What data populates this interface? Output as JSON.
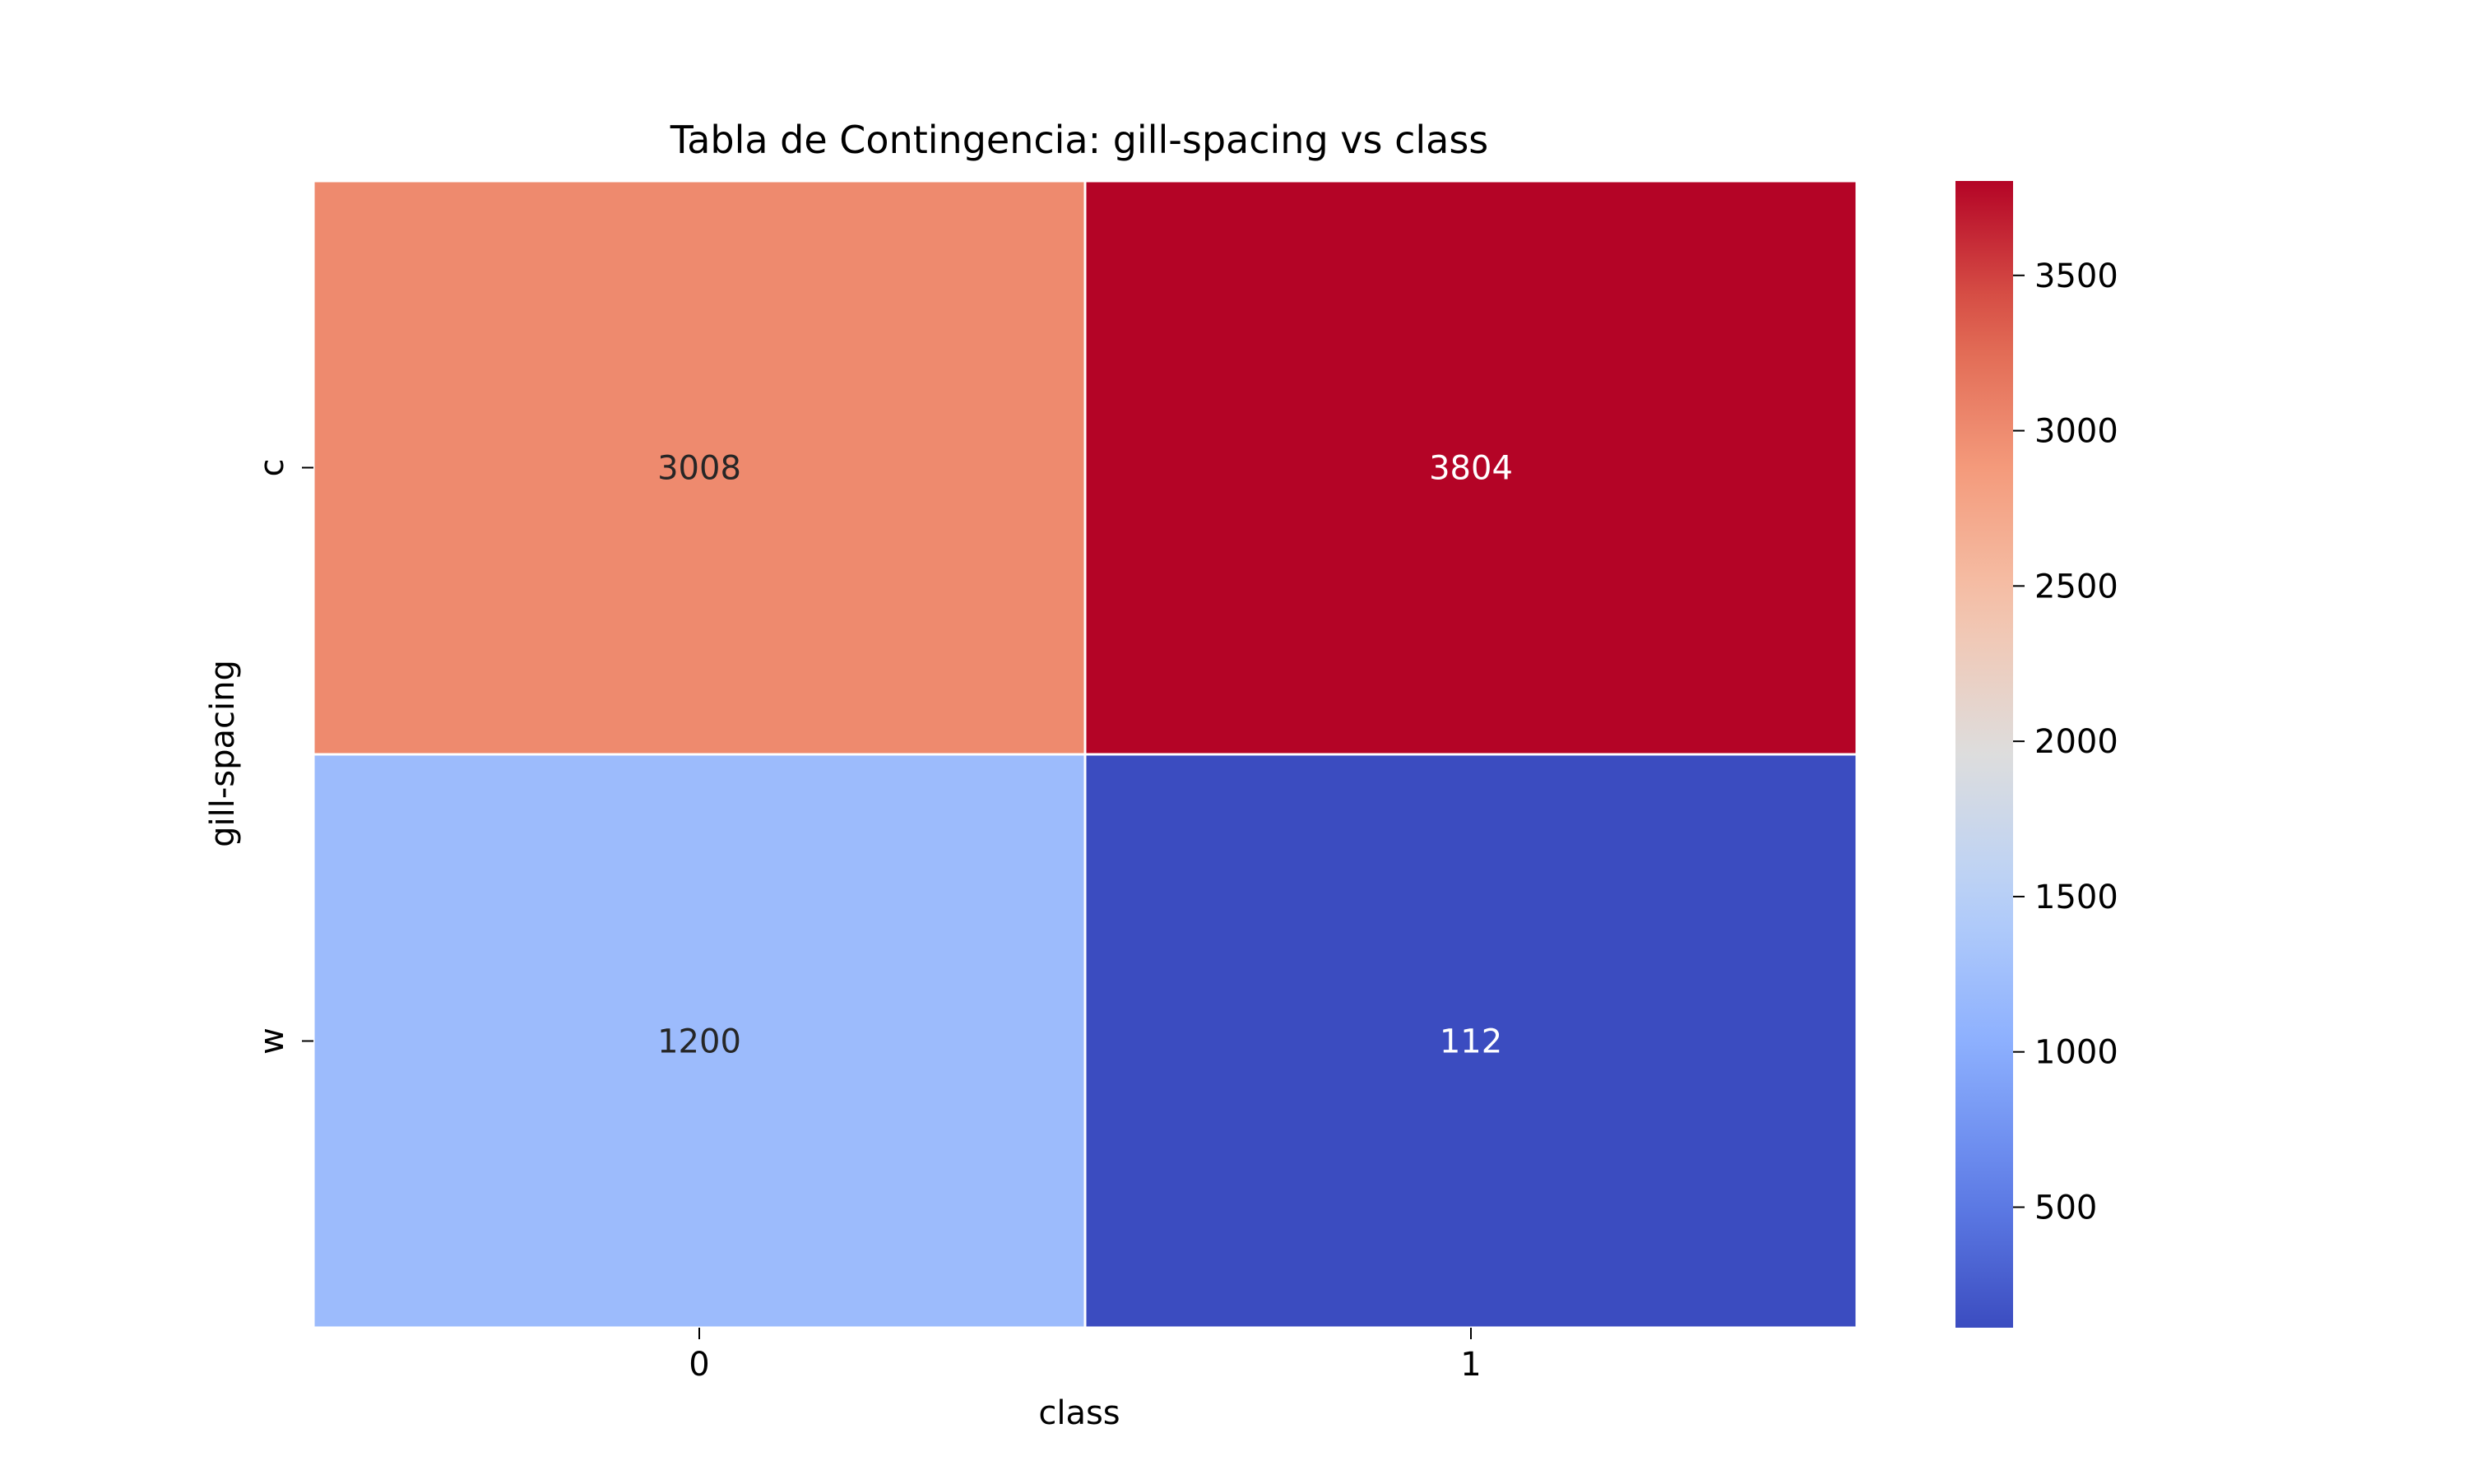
{
  "chart_data": {
    "type": "heatmap",
    "title": "Tabla de Contingencia: gill-spacing vs class",
    "xlabel": "class",
    "ylabel": "gill-spacing",
    "x_categories": [
      "0",
      "1"
    ],
    "y_categories": [
      "c",
      "w"
    ],
    "values": [
      [
        3008,
        3804
      ],
      [
        1200,
        112
      ]
    ],
    "colormap": "coolwarm",
    "color_range": [
      112,
      3804
    ],
    "colorbar_ticks": [
      500,
      1000,
      1500,
      2000,
      2500,
      3000,
      3500
    ],
    "colorbar_placement": "right",
    "grid": false
  }
}
